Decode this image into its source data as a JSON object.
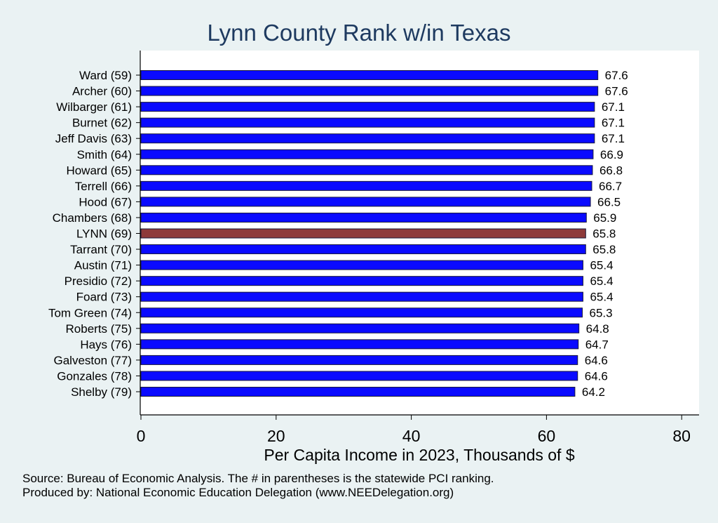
{
  "chart_data": {
    "type": "bar",
    "orientation": "horizontal",
    "title": "Lynn County Rank w/in Texas",
    "xlabel": "Per Capita Income in 2023, Thousands of $",
    "ylabel": "",
    "xlim": [
      0,
      80
    ],
    "xticks": [
      "0",
      "20",
      "40",
      "60",
      "80"
    ],
    "grid": false,
    "categories": [
      "Ward (59)",
      "Archer (60)",
      "Wilbarger (61)",
      "Burnet (62)",
      "Jeff Davis (63)",
      "Smith (64)",
      "Howard (65)",
      "Terrell (66)",
      "Hood (67)",
      "Chambers (68)",
      "LYNN (69)",
      "Tarrant (70)",
      "Austin (71)",
      "Presidio (72)",
      "Foard (73)",
      "Tom Green (74)",
      "Roberts (75)",
      "Hays (76)",
      "Galveston (77)",
      "Gonzales (78)",
      "Shelby (79)"
    ],
    "values": [
      67.6,
      67.6,
      67.1,
      67.1,
      67.1,
      66.9,
      66.8,
      66.7,
      66.5,
      65.9,
      65.8,
      65.8,
      65.4,
      65.4,
      65.4,
      65.3,
      64.8,
      64.7,
      64.6,
      64.6,
      64.2
    ],
    "value_labels": [
      "67.6",
      "67.6",
      "67.1",
      "67.1",
      "67.1",
      "66.9",
      "66.8",
      "66.7",
      "66.5",
      "65.9",
      "65.8",
      "65.8",
      "65.4",
      "65.4",
      "65.4",
      "65.3",
      "64.8",
      "64.7",
      "64.6",
      "64.6",
      "64.2"
    ],
    "highlight_index": 10,
    "colors": {
      "bar": "#0a0aff",
      "highlight": "#8e3a3a",
      "title": "#1e3a60",
      "background": "#eaf2f3",
      "plot_background": "#ffffff"
    }
  },
  "footnotes": {
    "source": "Source: Bureau of Economic Analysis. The # in parentheses is the statewide PCI ranking.",
    "produced_by": "Produced by: National Economic Education Delegation (www.NEEDelegation.org)"
  }
}
